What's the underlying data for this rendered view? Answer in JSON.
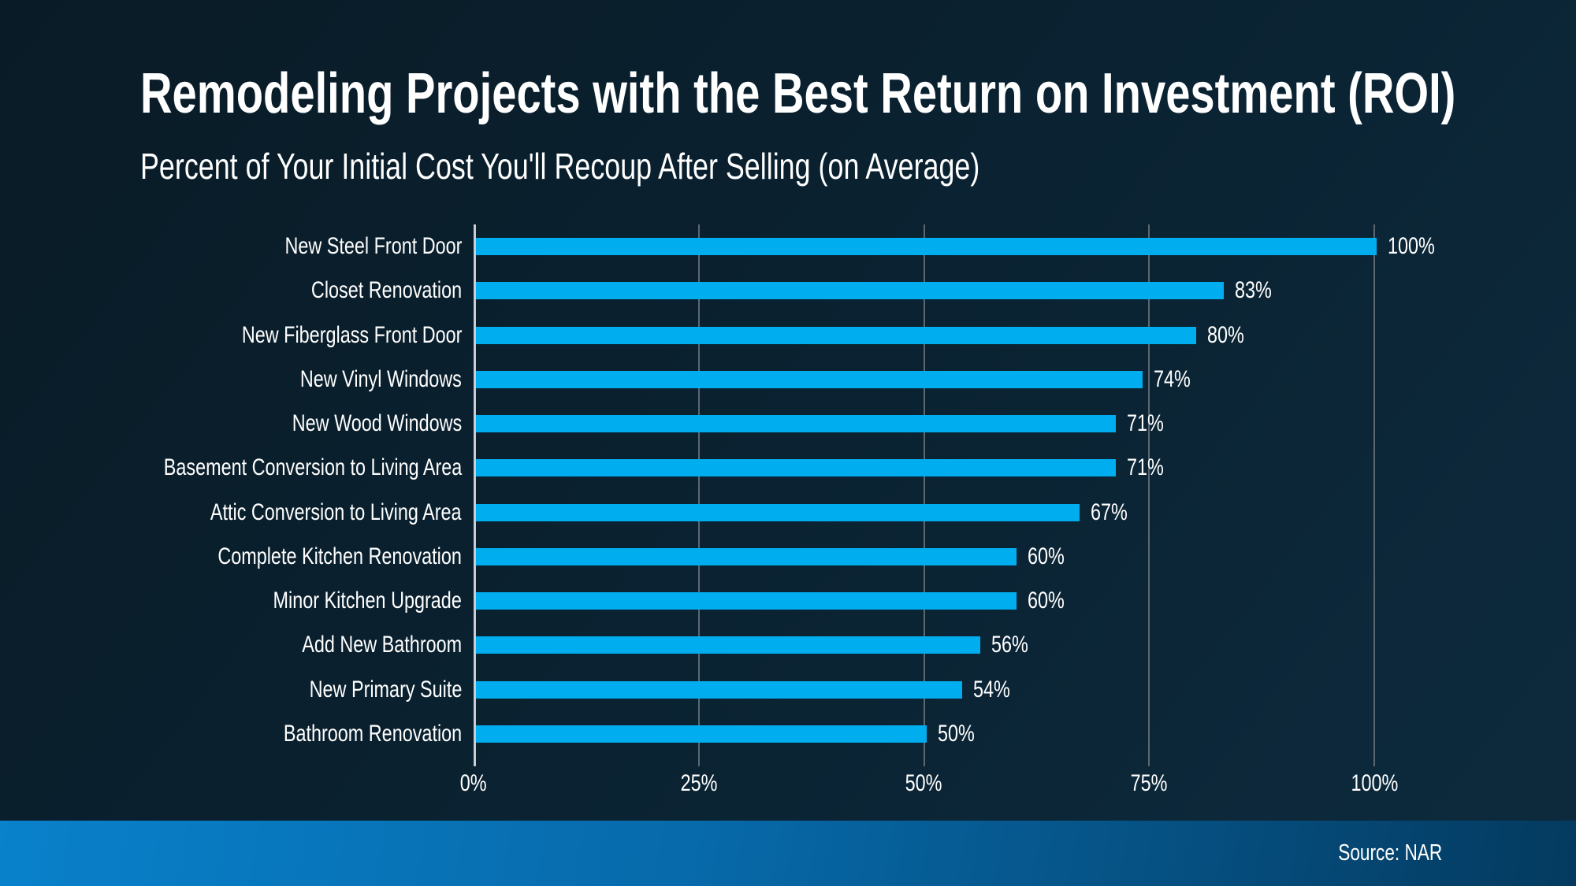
{
  "header": {
    "title": "Remodeling Projects with the Best Return on Investment (ROI)",
    "subtitle": "Percent of Your Initial Cost You'll Recoup After Selling (on Average)"
  },
  "chart_data": {
    "type": "bar",
    "orientation": "horizontal",
    "title": "Remodeling Projects with the Best Return on Investment (ROI)",
    "subtitle": "Percent of Your Initial Cost You'll Recoup After Selling (on Average)",
    "categories": [
      "New Steel Front Door",
      "Closet Renovation",
      "New Fiberglass Front Door",
      "New Vinyl Windows",
      "New Wood Windows",
      "Basement Conversion to Living Area",
      "Attic Conversion to Living Area",
      "Complete Kitchen Renovation",
      "Minor Kitchen Upgrade",
      "Add New Bathroom",
      "New Primary Suite",
      "Bathroom Renovation"
    ],
    "values": [
      100,
      83,
      80,
      74,
      71,
      71,
      67,
      60,
      60,
      56,
      54,
      50
    ],
    "value_labels": [
      "100%",
      "83%",
      "80%",
      "74%",
      "71%",
      "71%",
      "67%",
      "60%",
      "60%",
      "56%",
      "54%",
      "50%"
    ],
    "x_ticks": [
      "0%",
      "25%",
      "50%",
      "75%",
      "100%"
    ],
    "x_tick_values": [
      0,
      25,
      50,
      75,
      100
    ],
    "xlim": [
      0,
      100
    ],
    "grid": "vertical",
    "legend": "none"
  },
  "footer": {
    "source": "Source: NAR"
  },
  "colors": {
    "bar": "#00AEEF",
    "background_top": "#091B26",
    "background_bottom": "#0D2B3E",
    "gridline": "#5B6872",
    "axis_line": "#C9CED3",
    "footer_left": "#0981CB",
    "footer_right": "#043A5F",
    "text": "#FFFFFF"
  }
}
